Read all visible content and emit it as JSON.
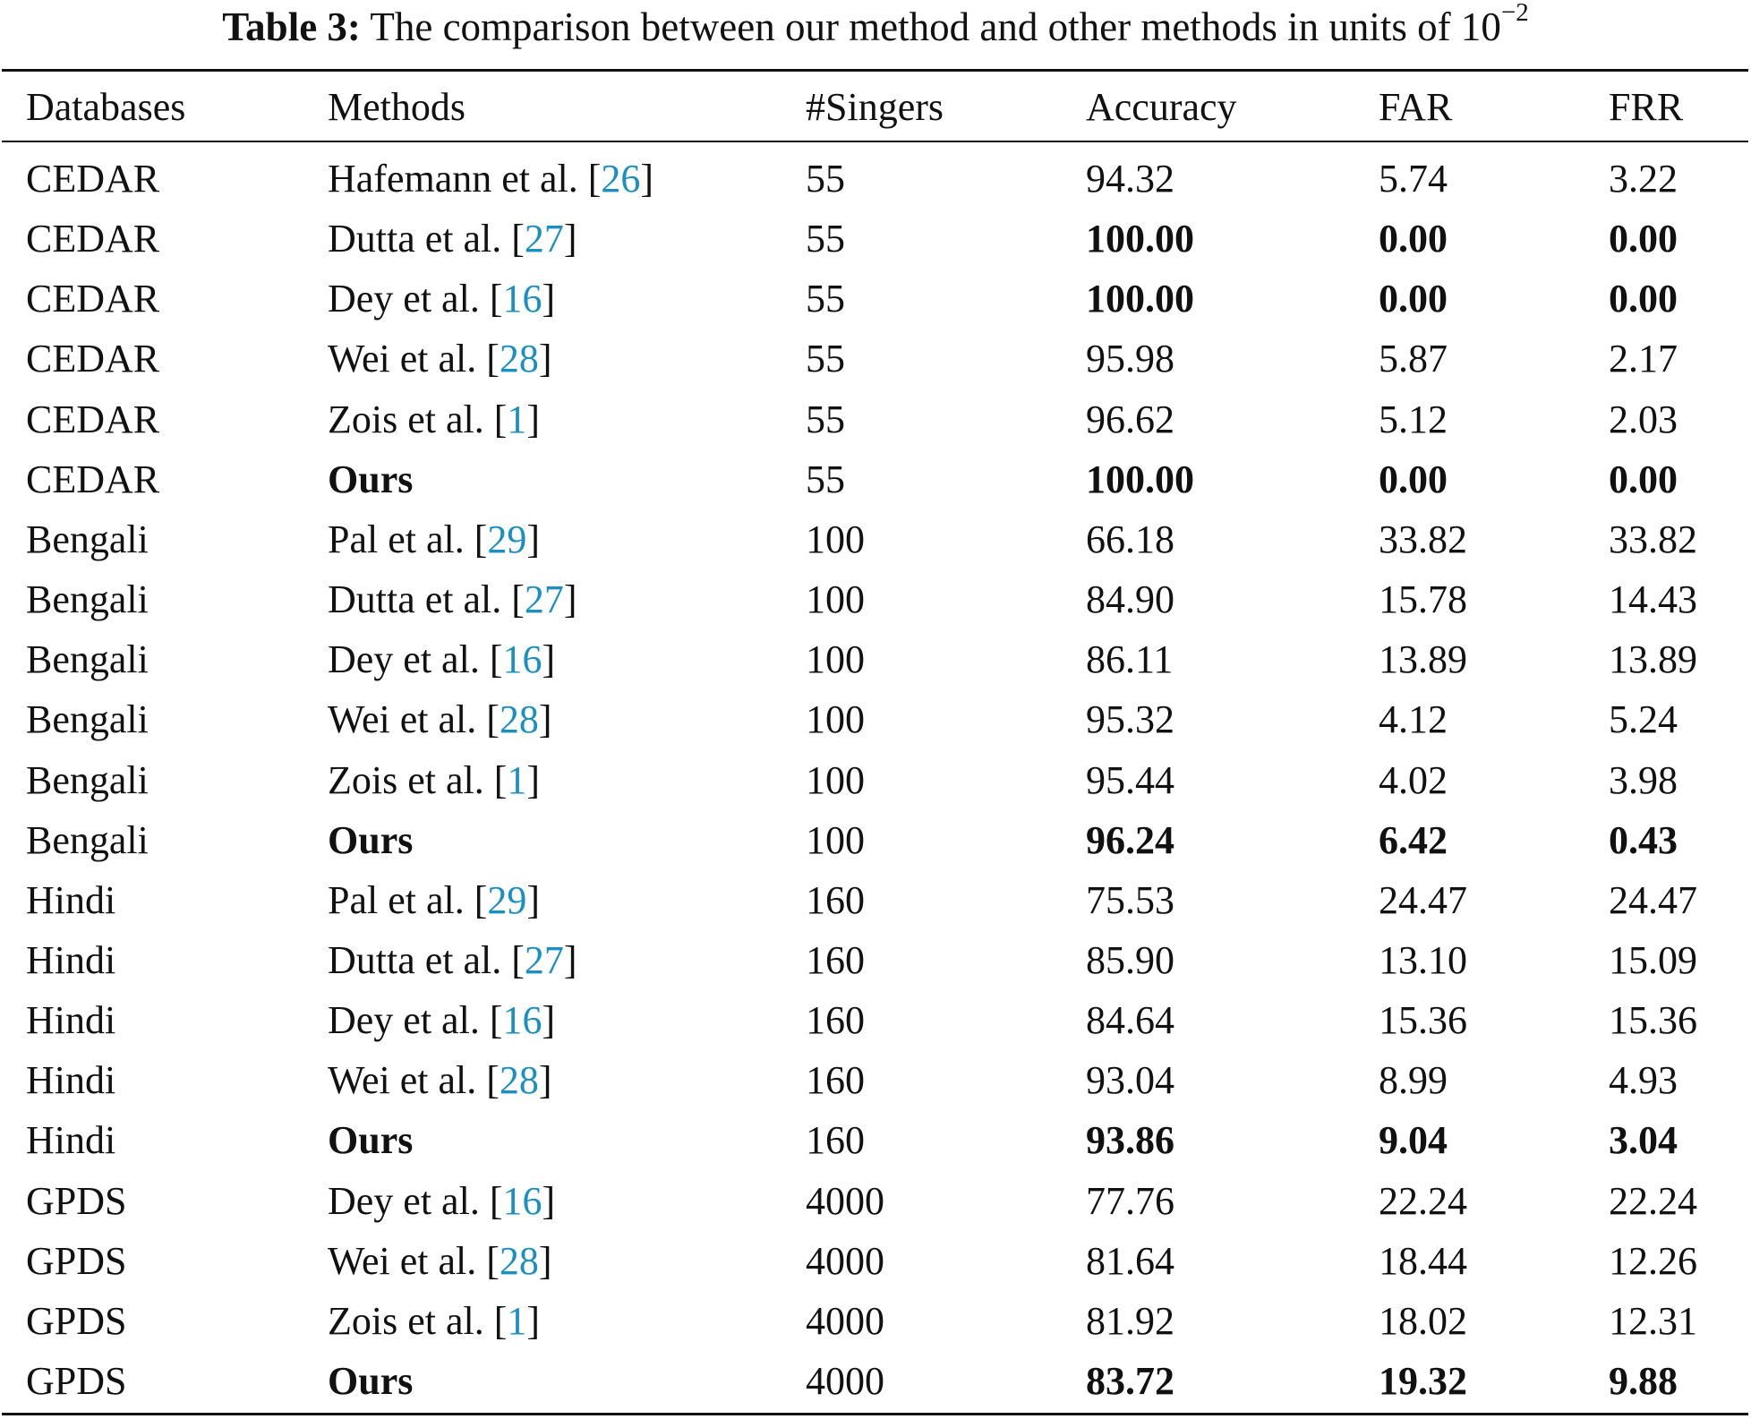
{
  "caption": {
    "label": "Table 3:",
    "text": "The comparison between our method and other methods in units of 10",
    "exponent": "−2"
  },
  "colors": {
    "text": "#111111",
    "citation_link": "#1a8fc2"
  },
  "table": {
    "headers": [
      "Databases",
      "Methods",
      "#Singers",
      "Accuracy",
      "FAR",
      "FRR"
    ],
    "rows": [
      {
        "db": "CEDAR",
        "method": "Hafemann et al. [",
        "ref": "26",
        "close": "]",
        "singers": "55",
        "acc": "94.32",
        "far": "5.74",
        "frr": "3.22",
        "ours": false,
        "best": false
      },
      {
        "db": "CEDAR",
        "method": "Dutta et al. [",
        "ref": "27",
        "close": "]",
        "singers": "55",
        "acc": "100.00",
        "far": "0.00",
        "frr": "0.00",
        "ours": false,
        "best": true
      },
      {
        "db": "CEDAR",
        "method": "Dey et al. [",
        "ref": "16",
        "close": "]",
        "singers": "55",
        "acc": "100.00",
        "far": "0.00",
        "frr": "0.00",
        "ours": false,
        "best": true
      },
      {
        "db": "CEDAR",
        "method": "Wei et al. [",
        "ref": "28",
        "close": "]",
        "singers": "55",
        "acc": "95.98",
        "far": "5.87",
        "frr": "2.17",
        "ours": false,
        "best": false
      },
      {
        "db": "CEDAR",
        "method": "Zois et al. [",
        "ref": "1",
        "close": "]",
        "singers": "55",
        "acc": "96.62",
        "far": "5.12",
        "frr": "2.03",
        "ours": false,
        "best": false
      },
      {
        "db": "CEDAR",
        "method": "Ours",
        "ref": "",
        "close": "",
        "singers": "55",
        "acc": "100.00",
        "far": "0.00",
        "frr": "0.00",
        "ours": true,
        "best": true
      },
      {
        "db": "Bengali",
        "method": "Pal et al. [",
        "ref": "29",
        "close": "]",
        "singers": "100",
        "acc": "66.18",
        "far": "33.82",
        "frr": "33.82",
        "ours": false,
        "best": false
      },
      {
        "db": "Bengali",
        "method": "Dutta et al. [",
        "ref": "27",
        "close": "]",
        "singers": "100",
        "acc": "84.90",
        "far": "15.78",
        "frr": "14.43",
        "ours": false,
        "best": false
      },
      {
        "db": "Bengali",
        "method": "Dey et al. [",
        "ref": "16",
        "close": "]",
        "singers": "100",
        "acc": "86.11",
        "far": "13.89",
        "frr": "13.89",
        "ours": false,
        "best": false
      },
      {
        "db": "Bengali",
        "method": "Wei et al. [",
        "ref": "28",
        "close": "]",
        "singers": "100",
        "acc": "95.32",
        "far": "4.12",
        "frr": "5.24",
        "ours": false,
        "best": false
      },
      {
        "db": "Bengali",
        "method": "Zois et al. [",
        "ref": "1",
        "close": "]",
        "singers": "100",
        "acc": "95.44",
        "far": "4.02",
        "frr": "3.98",
        "ours": false,
        "best": false
      },
      {
        "db": "Bengali",
        "method": "Ours",
        "ref": "",
        "close": "",
        "singers": "100",
        "acc": "96.24",
        "far": "6.42",
        "frr": "0.43",
        "ours": true,
        "best": true
      },
      {
        "db": "Hindi",
        "method": "Pal et al. [",
        "ref": "29",
        "close": "]",
        "singers": "160",
        "acc": "75.53",
        "far": "24.47",
        "frr": "24.47",
        "ours": false,
        "best": false
      },
      {
        "db": "Hindi",
        "method": "Dutta et al. [",
        "ref": "27",
        "close": "]",
        "singers": "160",
        "acc": "85.90",
        "far": "13.10",
        "frr": "15.09",
        "ours": false,
        "best": false
      },
      {
        "db": "Hindi",
        "method": "Dey et al. [",
        "ref": "16",
        "close": "]",
        "singers": "160",
        "acc": "84.64",
        "far": "15.36",
        "frr": "15.36",
        "ours": false,
        "best": false
      },
      {
        "db": "Hindi",
        "method": "Wei et al. [",
        "ref": "28",
        "close": "]",
        "singers": "160",
        "acc": "93.04",
        "far": "8.99",
        "frr": "4.93",
        "ours": false,
        "best": false
      },
      {
        "db": "Hindi",
        "method": "Ours",
        "ref": "",
        "close": "",
        "singers": "160",
        "acc": "93.86",
        "far": "9.04",
        "frr": "3.04",
        "ours": true,
        "best": true
      },
      {
        "db": "GPDS",
        "method": "Dey et al. [",
        "ref": "16",
        "close": "]",
        "singers": "4000",
        "acc": "77.76",
        "far": "22.24",
        "frr": "22.24",
        "ours": false,
        "best": false
      },
      {
        "db": "GPDS",
        "method": "Wei et al. [",
        "ref": "28",
        "close": "]",
        "singers": "4000",
        "acc": "81.64",
        "far": "18.44",
        "frr": "12.26",
        "ours": false,
        "best": false
      },
      {
        "db": "GPDS",
        "method": "Zois et al. [",
        "ref": "1",
        "close": "]",
        "singers": "4000",
        "acc": "81.92",
        "far": "18.02",
        "frr": "12.31",
        "ours": false,
        "best": false
      },
      {
        "db": "GPDS",
        "method": "Ours",
        "ref": "",
        "close": "",
        "singers": "4000",
        "acc": "83.72",
        "far": "19.32",
        "frr": "9.88",
        "ours": true,
        "best": true
      }
    ]
  }
}
